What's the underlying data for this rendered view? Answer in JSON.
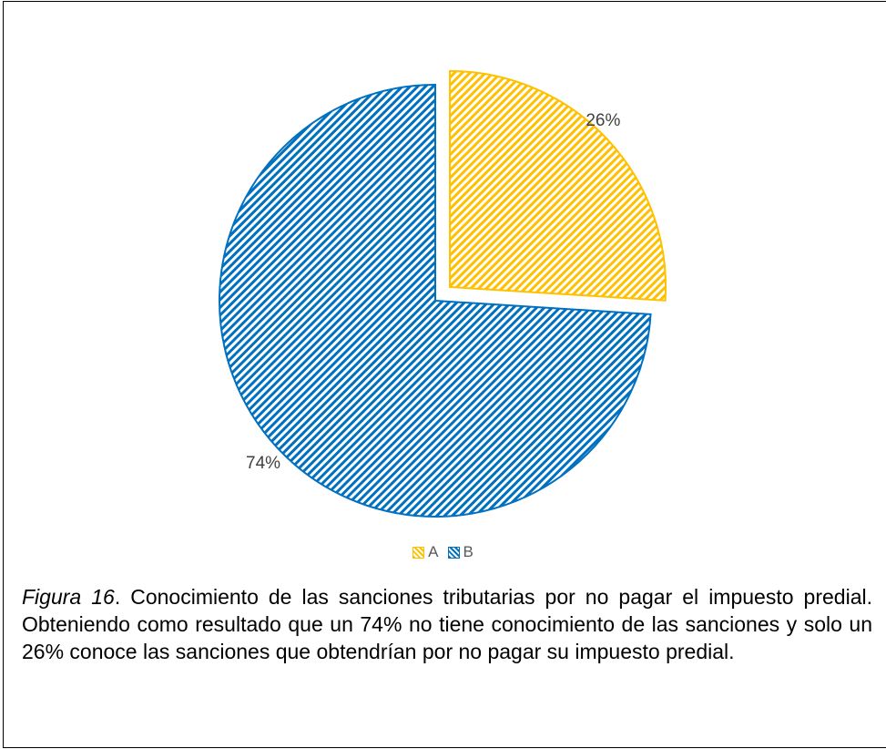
{
  "chart_data": {
    "type": "pie",
    "slices": [
      {
        "name": "A",
        "value": 26,
        "label": "26%",
        "color": "#FFC000",
        "exploded": true
      },
      {
        "name": "B",
        "value": 74,
        "label": "74%",
        "color": "#0070C0",
        "exploded": false
      }
    ],
    "fill_pattern": "diagonal-hatch",
    "legend": {
      "placement": "bottom",
      "entries": [
        "A",
        "B"
      ]
    }
  },
  "caption": {
    "figure_label": "Figura 16",
    "text": ". Conocimiento de las sanciones tributarias por no pagar el impuesto predial. Obteniendo como resultado que un 74% no tiene conocimiento de las sanciones y solo un 26% conoce las sanciones que obtendrían por no pagar su impuesto predial."
  }
}
